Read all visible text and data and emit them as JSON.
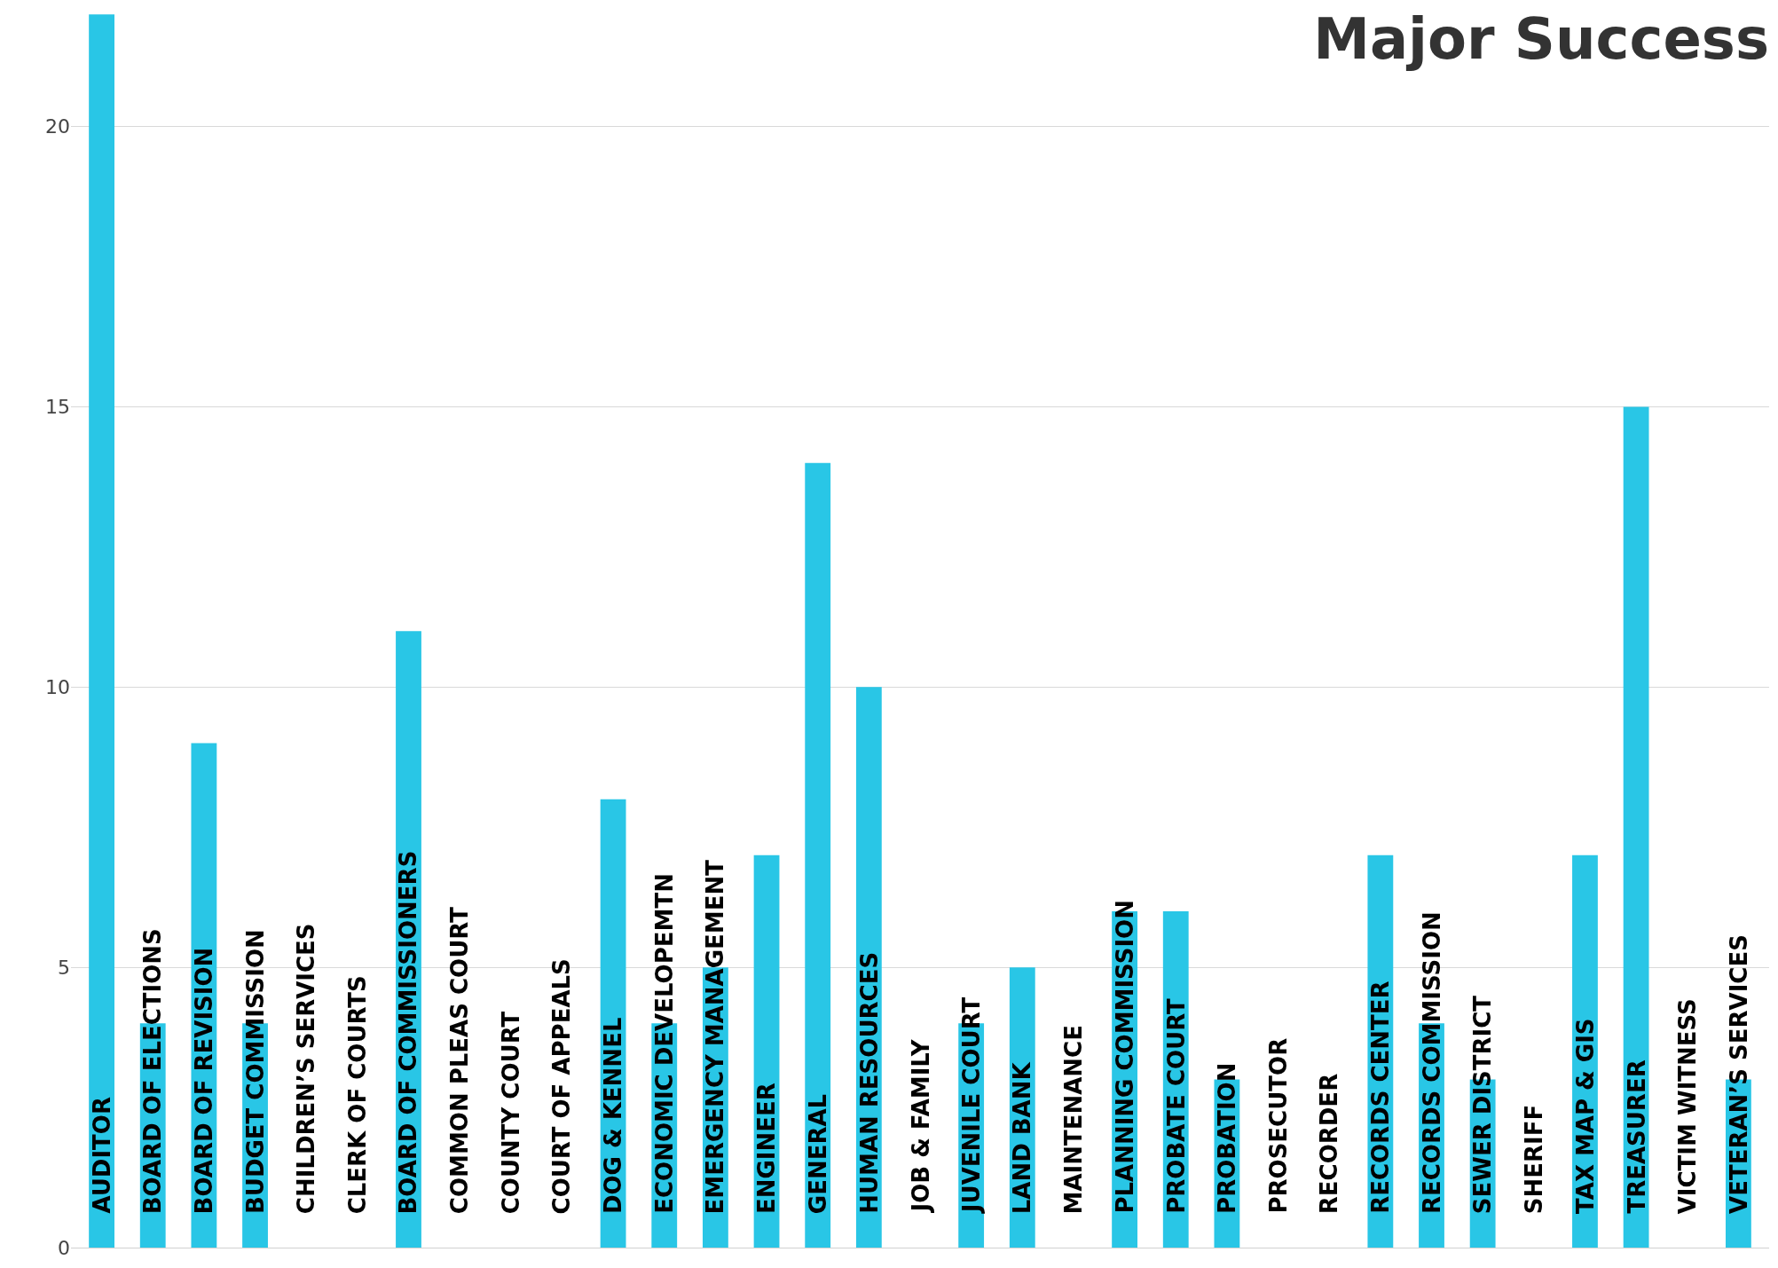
{
  "chart_data": {
    "type": "bar",
    "title": "Major Success",
    "categories": [
      "AUDITOR",
      "BOARD OF ELECTIONS",
      "BOARD OF REVISION",
      "BUDGET COMMISSION",
      "CHILDREN’S SERVICES",
      "CLERK OF COURTS",
      "BOARD OF COMMISSIONERS",
      "COMMON PLEAS COURT",
      "COUNTY COURT",
      "COURT OF APPEALS",
      "DOG & KENNEL",
      "ECONOMIC DEVELOPEMTN",
      "EMERGENCY MANAGEMENT",
      "ENGINEER",
      "GENERAL",
      "HUMAN RESOURCES",
      "JOB & FAMILY",
      "JUVENILE COURT",
      "LAND BANK",
      "MAINTENANCE",
      "PLANNING COMMISSION",
      "PROBATE COURT",
      "PROBATION",
      "PROSECUTOR",
      "RECORDER",
      "RECORDS CENTER",
      "RECORDS COMMISSION",
      "SEWER DISTRICT",
      "SHERIFF",
      "TAX MAP & GIS",
      "TREASURER",
      "VICTIM WITNESS",
      "VETERAN’S SERVICES"
    ],
    "values": [
      22,
      4,
      9,
      4,
      0,
      0,
      11,
      0,
      0,
      0,
      8,
      4,
      5,
      7,
      14,
      10,
      0,
      4,
      5,
      0,
      6,
      6,
      3,
      0,
      0,
      7,
      4,
      3,
      0,
      7,
      15,
      0,
      3
    ],
    "color": "#29c6e6",
    "ylim": [
      0,
      22.1
    ],
    "yticks": [
      0,
      5,
      10,
      15,
      20
    ],
    "grid": "y"
  }
}
